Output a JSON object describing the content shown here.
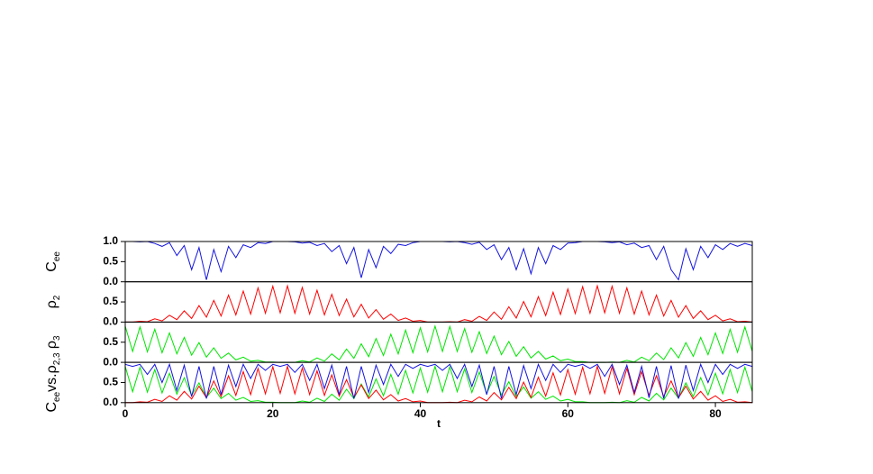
{
  "chart_data": [
    {
      "type": "line",
      "ylabel_parts": [
        "C",
        "ee"
      ],
      "xlim": [
        0,
        85
      ],
      "ylim": [
        0,
        1
      ],
      "yticks": [
        {
          "value": 0,
          "label": "0.0"
        },
        {
          "value": 0.5,
          "label": "0.5"
        },
        {
          "value": 1,
          "label": "1.0"
        }
      ],
      "x": [
        0,
        1,
        2,
        3,
        4,
        5,
        6,
        7,
        8,
        9,
        10,
        11,
        12,
        13,
        14,
        15,
        16,
        17,
        18,
        19,
        20,
        21,
        22,
        23,
        24,
        25,
        26,
        27,
        28,
        29,
        30,
        31,
        32,
        33,
        34,
        35,
        36,
        37,
        38,
        39,
        40,
        41,
        42,
        43,
        44,
        45,
        46,
        47,
        48,
        49,
        50,
        51,
        52,
        53,
        54,
        55,
        56,
        57,
        58,
        59,
        60,
        61,
        62,
        63,
        64,
        65,
        66,
        67,
        68,
        69,
        70,
        71,
        72,
        73,
        74,
        75,
        76,
        77,
        78,
        79,
        80,
        81,
        82,
        83,
        84,
        85
      ],
      "series": [
        {
          "color": "#1414e0",
          "values": [
            1.0,
            1.0,
            0.99,
            1.0,
            0.95,
            0.88,
            0.97,
            0.65,
            0.9,
            0.3,
            0.85,
            0.05,
            0.8,
            0.25,
            0.88,
            0.6,
            0.92,
            0.85,
            0.97,
            0.95,
            1.0,
            1.0,
            1.0,
            0.99,
            0.96,
            0.98,
            0.9,
            0.95,
            0.75,
            0.9,
            0.45,
            0.85,
            0.1,
            0.8,
            0.35,
            0.88,
            0.7,
            0.93,
            0.9,
            0.97,
            1.0,
            1.0,
            1.0,
            1.0,
            0.99,
            1.0,
            0.97,
            0.93,
            0.98,
            0.8,
            0.92,
            0.55,
            0.85,
            0.3,
            0.82,
            0.2,
            0.85,
            0.45,
            0.9,
            0.8,
            0.96,
            0.97,
            1.0,
            1.0,
            1.0,
            0.99,
            0.97,
            0.99,
            0.92,
            0.96,
            0.85,
            0.9,
            0.55,
            0.88,
            0.3,
            0.05,
            0.82,
            0.3,
            0.88,
            0.6,
            0.92,
            0.8,
            0.95,
            0.88,
            0.95,
            0.9
          ]
        }
      ]
    },
    {
      "type": "line",
      "ylabel_parts": [
        "ρ",
        "2"
      ],
      "xlim": [
        0,
        85
      ],
      "ylim": [
        0,
        1
      ],
      "yticks": [
        {
          "value": 0,
          "label": "0.0"
        },
        {
          "value": 0.5,
          "label": "0.5"
        }
      ],
      "x": [
        0,
        1,
        2,
        3,
        4,
        5,
        6,
        7,
        8,
        9,
        10,
        11,
        12,
        13,
        14,
        15,
        16,
        17,
        18,
        19,
        20,
        21,
        22,
        23,
        24,
        25,
        26,
        27,
        28,
        29,
        30,
        31,
        32,
        33,
        34,
        35,
        36,
        37,
        38,
        39,
        40,
        41,
        42,
        43,
        44,
        45,
        46,
        47,
        48,
        49,
        50,
        51,
        52,
        53,
        54,
        55,
        56,
        57,
        58,
        59,
        60,
        61,
        62,
        63,
        64,
        65,
        66,
        67,
        68,
        69,
        70,
        71,
        72,
        73,
        74,
        75,
        76,
        77,
        78,
        79,
        80,
        81,
        82,
        83,
        84,
        85
      ],
      "series": [
        {
          "color": "#ff0000",
          "values": [
            0,
            0,
            0.02,
            0.01,
            0.08,
            0.03,
            0.17,
            0.06,
            0.28,
            0.09,
            0.41,
            0.12,
            0.54,
            0.15,
            0.67,
            0.18,
            0.77,
            0.2,
            0.85,
            0.22,
            0.89,
            0.23,
            0.9,
            0.22,
            0.86,
            0.2,
            0.79,
            0.18,
            0.69,
            0.16,
            0.57,
            0.13,
            0.44,
            0.1,
            0.31,
            0.07,
            0.2,
            0.04,
            0.1,
            0.02,
            0.04,
            0,
            0,
            0,
            0.01,
            0,
            0.06,
            0.02,
            0.14,
            0.04,
            0.25,
            0.07,
            0.38,
            0.1,
            0.51,
            0.13,
            0.63,
            0.16,
            0.74,
            0.19,
            0.82,
            0.21,
            0.88,
            0.22,
            0.9,
            0.23,
            0.89,
            0.22,
            0.85,
            0.2,
            0.77,
            0.18,
            0.67,
            0.15,
            0.54,
            0.12,
            0.41,
            0.09,
            0.28,
            0.06,
            0.17,
            0.03,
            0.08,
            0.01,
            0.02,
            0
          ]
        }
      ]
    },
    {
      "type": "line",
      "ylabel_parts": [
        "ρ",
        "3"
      ],
      "xlim": [
        0,
        85
      ],
      "ylim": [
        0,
        1
      ],
      "yticks": [
        {
          "value": 0,
          "label": "0.0"
        },
        {
          "value": 0.5,
          "label": "0.5"
        }
      ],
      "x": [
        0,
        1,
        2,
        3,
        4,
        5,
        6,
        7,
        8,
        9,
        10,
        11,
        12,
        13,
        14,
        15,
        16,
        17,
        18,
        19,
        20,
        21,
        22,
        23,
        24,
        25,
        26,
        27,
        28,
        29,
        30,
        31,
        32,
        33,
        34,
        35,
        36,
        37,
        38,
        39,
        40,
        41,
        42,
        43,
        44,
        45,
        46,
        47,
        48,
        49,
        50,
        51,
        52,
        53,
        54,
        55,
        56,
        57,
        58,
        59,
        60,
        61,
        62,
        63,
        64,
        65,
        66,
        67,
        68,
        69,
        70,
        71,
        72,
        73,
        74,
        75,
        76,
        77,
        78,
        79,
        80,
        81,
        82,
        83,
        84,
        85
      ],
      "series": [
        {
          "color": "#00e600",
          "values": [
            0.9,
            0.27,
            0.88,
            0.26,
            0.82,
            0.24,
            0.73,
            0.21,
            0.62,
            0.18,
            0.49,
            0.13,
            0.36,
            0.1,
            0.23,
            0.06,
            0.13,
            0.03,
            0.05,
            0.01,
            0.01,
            0,
            0,
            0,
            0.04,
            0.01,
            0.11,
            0.03,
            0.21,
            0.06,
            0.33,
            0.1,
            0.46,
            0.14,
            0.59,
            0.17,
            0.7,
            0.21,
            0.8,
            0.24,
            0.86,
            0.26,
            0.9,
            0.27,
            0.89,
            0.27,
            0.84,
            0.25,
            0.76,
            0.22,
            0.65,
            0.19,
            0.52,
            0.15,
            0.39,
            0.11,
            0.27,
            0.08,
            0.16,
            0.04,
            0.08,
            0.02,
            0.02,
            0,
            0,
            0,
            0.01,
            0,
            0.05,
            0.01,
            0.13,
            0.04,
            0.23,
            0.07,
            0.36,
            0.11,
            0.49,
            0.15,
            0.62,
            0.19,
            0.73,
            0.22,
            0.82,
            0.25,
            0.88,
            0.27
          ]
        }
      ]
    },
    {
      "type": "line",
      "ylabel_parts": [
        "C",
        "ee",
        "vs.ρ",
        "2,3"
      ],
      "xlabel": "t",
      "xlim": [
        0,
        85
      ],
      "ylim": [
        0,
        1
      ],
      "yticks": [
        {
          "value": 0,
          "label": "0.0"
        },
        {
          "value": 0.5,
          "label": "0.5"
        }
      ],
      "xticks": [
        0,
        20,
        40,
        60,
        80
      ],
      "x": [
        0,
        1,
        2,
        3,
        4,
        5,
        6,
        7,
        8,
        9,
        10,
        11,
        12,
        13,
        14,
        15,
        16,
        17,
        18,
        19,
        20,
        21,
        22,
        23,
        24,
        25,
        26,
        27,
        28,
        29,
        30,
        31,
        32,
        33,
        34,
        35,
        36,
        37,
        38,
        39,
        40,
        41,
        42,
        43,
        44,
        45,
        46,
        47,
        48,
        49,
        50,
        51,
        52,
        53,
        54,
        55,
        56,
        57,
        58,
        59,
        60,
        61,
        62,
        63,
        64,
        65,
        66,
        67,
        68,
        69,
        70,
        71,
        72,
        73,
        74,
        75,
        76,
        77,
        78,
        79,
        80,
        81,
        82,
        83,
        84,
        85
      ],
      "series": [
        {
          "color": "#00e600",
          "values": [
            0.9,
            0.27,
            0.88,
            0.26,
            0.82,
            0.24,
            0.73,
            0.21,
            0.62,
            0.18,
            0.49,
            0.13,
            0.36,
            0.1,
            0.23,
            0.06,
            0.13,
            0.03,
            0.05,
            0.01,
            0.01,
            0,
            0,
            0,
            0.04,
            0.01,
            0.11,
            0.03,
            0.21,
            0.06,
            0.33,
            0.1,
            0.46,
            0.14,
            0.59,
            0.17,
            0.7,
            0.21,
            0.8,
            0.24,
            0.86,
            0.26,
            0.9,
            0.27,
            0.89,
            0.27,
            0.84,
            0.25,
            0.76,
            0.22,
            0.65,
            0.19,
            0.52,
            0.15,
            0.39,
            0.11,
            0.27,
            0.08,
            0.16,
            0.04,
            0.08,
            0.02,
            0.02,
            0,
            0,
            0,
            0.01,
            0,
            0.05,
            0.01,
            0.13,
            0.04,
            0.23,
            0.07,
            0.36,
            0.11,
            0.49,
            0.15,
            0.62,
            0.19,
            0.73,
            0.22,
            0.82,
            0.25,
            0.88,
            0.27
          ]
        },
        {
          "color": "#ff0000",
          "values": [
            0,
            0,
            0.02,
            0.01,
            0.08,
            0.03,
            0.17,
            0.06,
            0.28,
            0.09,
            0.41,
            0.12,
            0.54,
            0.15,
            0.67,
            0.18,
            0.77,
            0.2,
            0.85,
            0.22,
            0.89,
            0.23,
            0.9,
            0.22,
            0.86,
            0.2,
            0.79,
            0.18,
            0.69,
            0.16,
            0.57,
            0.13,
            0.44,
            0.1,
            0.31,
            0.07,
            0.2,
            0.04,
            0.1,
            0.02,
            0.04,
            0,
            0,
            0,
            0.01,
            0,
            0.06,
            0.02,
            0.14,
            0.04,
            0.25,
            0.07,
            0.38,
            0.1,
            0.51,
            0.13,
            0.63,
            0.16,
            0.74,
            0.19,
            0.82,
            0.21,
            0.88,
            0.22,
            0.9,
            0.23,
            0.89,
            0.22,
            0.85,
            0.2,
            0.77,
            0.18,
            0.67,
            0.15,
            0.54,
            0.12,
            0.41,
            0.09,
            0.28,
            0.06,
            0.17,
            0.03,
            0.08,
            0.01,
            0.02,
            0
          ]
        },
        {
          "color": "#1414e0",
          "values": [
            0.95,
            0.9,
            0.95,
            0.7,
            0.95,
            0.5,
            0.95,
            0.3,
            0.93,
            0.15,
            0.9,
            0.1,
            0.9,
            0.2,
            0.93,
            0.4,
            0.95,
            0.6,
            0.95,
            0.8,
            0.95,
            0.9,
            0.95,
            0.75,
            0.95,
            0.55,
            0.95,
            0.35,
            0.93,
            0.2,
            0.9,
            0.1,
            0.9,
            0.25,
            0.93,
            0.45,
            0.95,
            0.65,
            0.95,
            0.85,
            0.95,
            0.9,
            0.95,
            0.8,
            0.95,
            0.6,
            0.95,
            0.4,
            0.93,
            0.2,
            0.9,
            0.1,
            0.9,
            0.2,
            0.92,
            0.35,
            0.95,
            0.55,
            0.95,
            0.75,
            0.95,
            0.9,
            0.95,
            0.85,
            0.95,
            0.65,
            0.95,
            0.45,
            0.93,
            0.25,
            0.9,
            0.12,
            0.9,
            0.1,
            0.92,
            0.1,
            0.93,
            0.3,
            0.95,
            0.5,
            0.95,
            0.7,
            0.95,
            0.85,
            0.95,
            0.9
          ]
        }
      ]
    }
  ]
}
